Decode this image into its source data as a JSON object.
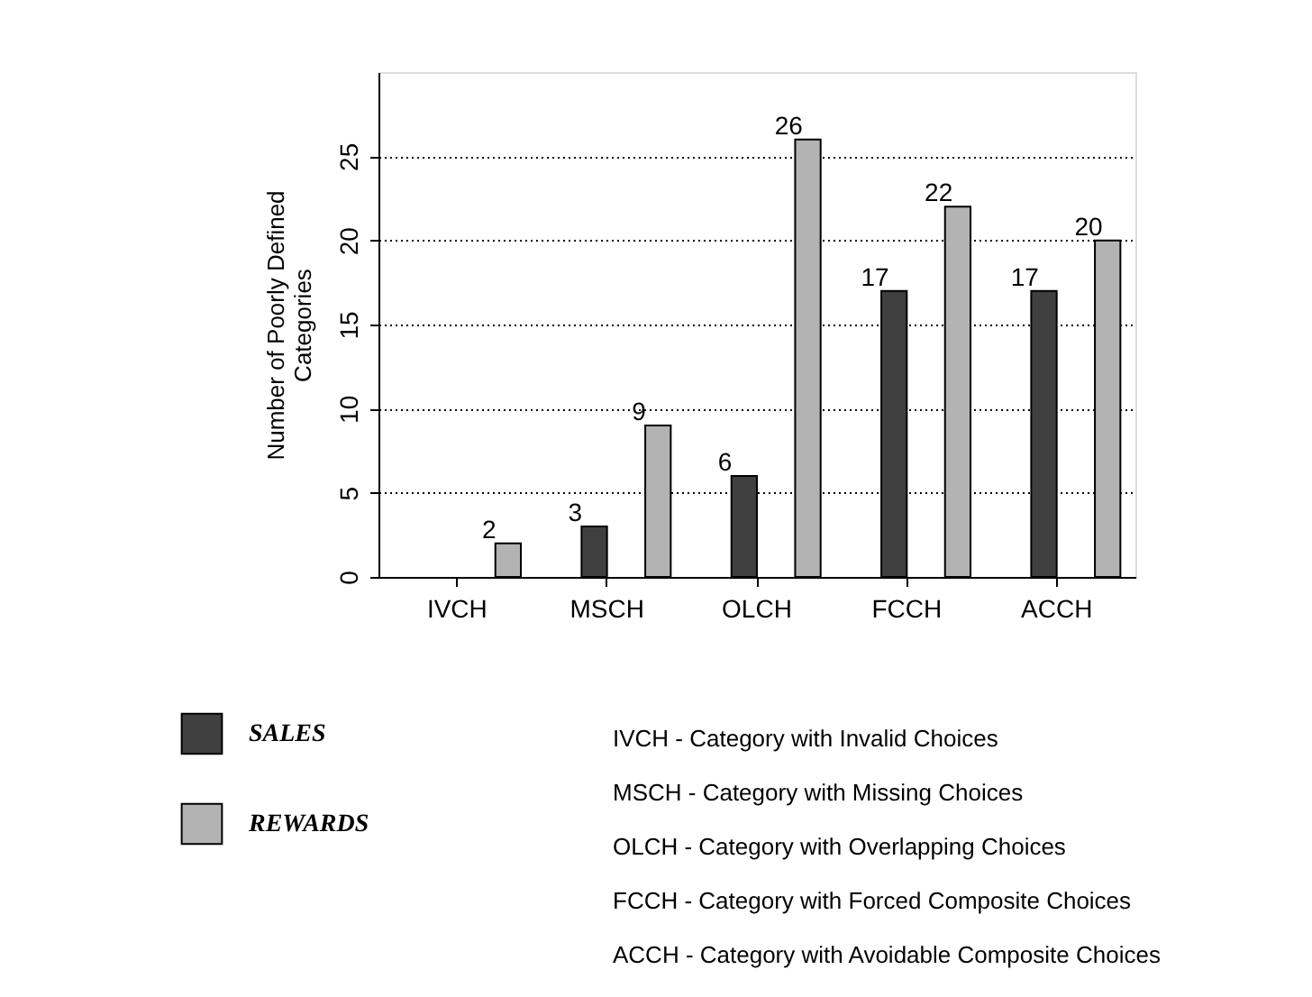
{
  "chart_data": {
    "type": "bar",
    "ylabel": "Number of Poorly Defined Categories",
    "categories": [
      "IVCH",
      "MSCH",
      "OLCH",
      "FCCH",
      "ACCH"
    ],
    "series": [
      {
        "name": "SALES",
        "color": "#404040",
        "values": [
          null,
          3,
          6,
          17,
          17
        ]
      },
      {
        "name": "REWARDS",
        "color": "#b3b3b3",
        "values": [
          2,
          9,
          26,
          22,
          20
        ]
      }
    ],
    "ylim": [
      0,
      30
    ],
    "yticks": [
      0,
      5,
      10,
      15,
      20,
      25
    ],
    "grid": "y",
    "data_labels": true,
    "legend": "bottom left",
    "annotations": [
      "IVCH  -  Category with Invalid Choices",
      "MSCH  -  Category with Missing Choices",
      "OLCH  -  Category with Overlapping Choices",
      "FCCH  -  Category with Forced Composite Choices",
      "ACCH  -  Category with Avoidable Composite Choices"
    ]
  }
}
